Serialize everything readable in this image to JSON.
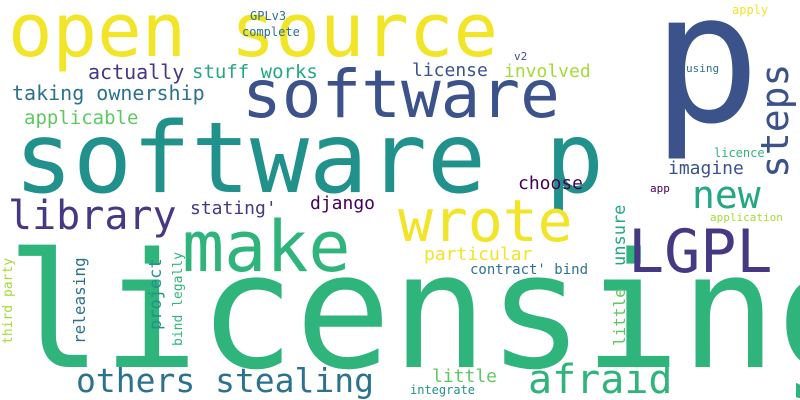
{
  "colors": {
    "background": "#ffffff",
    "yellow": "#f2e427",
    "lime": "#a5db36",
    "light_green": "#5ec962",
    "green": "#2fb47c",
    "teal_green": "#24a884",
    "teal": "#21918c",
    "blue_teal": "#2c728e",
    "steel_blue": "#3b528b",
    "indigo": "#443983",
    "dark_purple": "#440154"
  },
  "words": [
    "open source",
    "p",
    "software p",
    "software",
    "licensing",
    "make",
    "wrote",
    "LGPL",
    "steps",
    "new",
    "library",
    "afraid",
    "others stealing",
    "taking ownership",
    "actually",
    "stuff works",
    "license",
    "involved",
    "applicable",
    "imagine",
    "choose",
    "stating'",
    "django",
    "particular",
    "unsure",
    "releasing",
    "project",
    "little",
    "third party",
    "bind legally",
    "contract' bind",
    "integrate",
    "GPLv3",
    "complete",
    "v2",
    "apply",
    "using",
    "licence",
    "app",
    "application"
  ]
}
